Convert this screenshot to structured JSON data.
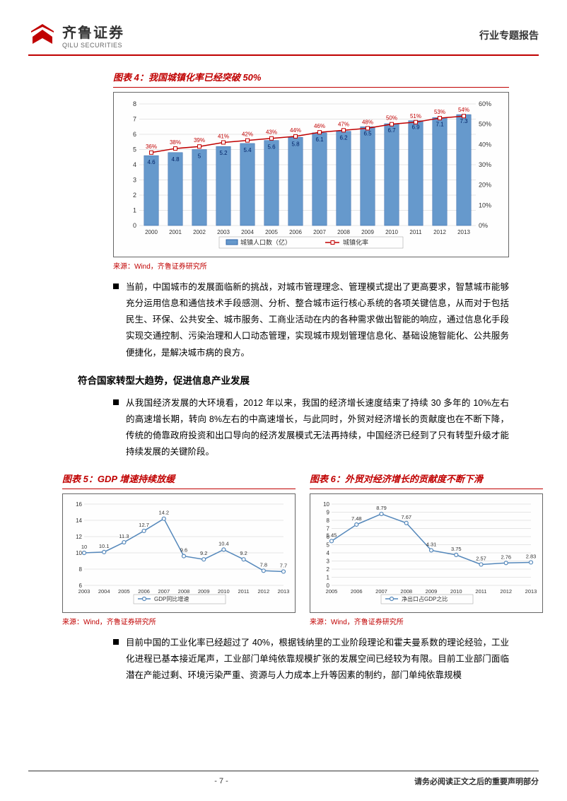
{
  "header": {
    "logo_cn": "齐鲁证券",
    "logo_en": "QILU SECURITIES",
    "report_type": "行业专题报告"
  },
  "chart4": {
    "title_prefix": "图表 4：",
    "title_text": "我国城镇化率已经突破 50%",
    "type": "bar_line_combo",
    "x_labels": [
      "2000",
      "2001",
      "2002",
      "2003",
      "2004",
      "2005",
      "2006",
      "2007",
      "2008",
      "2009",
      "2010",
      "2011",
      "2012",
      "2013"
    ],
    "bar_values": [
      4.6,
      4.8,
      5.0,
      5.2,
      5.4,
      5.6,
      5.8,
      6.1,
      6.2,
      6.5,
      6.7,
      6.9,
      7.1,
      7.3
    ],
    "line_values": [
      36,
      38,
      39,
      41,
      42,
      43,
      44,
      46,
      47,
      48,
      50,
      51,
      53,
      54
    ],
    "line_labels": [
      "36%",
      "38%",
      "39%",
      "41%",
      "42%",
      "43%",
      "44%",
      "46%",
      "47%",
      "48%",
      "50%",
      "51%",
      "53%",
      "54%"
    ],
    "left_axis": {
      "min": 0,
      "max": 8,
      "ticks": [
        0,
        1,
        2,
        3,
        4,
        5,
        6,
        7,
        8
      ]
    },
    "right_axis": {
      "min": 0,
      "max": 60,
      "ticks": [
        "0%",
        "10%",
        "20%",
        "30%",
        "40%",
        "50%",
        "60%"
      ]
    },
    "bar_color": "#6699cc",
    "bar_stroke": "#3366aa",
    "line_color": "#c00000",
    "grid_color": "#cccccc",
    "legend": [
      "城镇人口数（亿）",
      "城镇化率"
    ],
    "source": "来源：Wind，齐鲁证券研究所"
  },
  "para1": "当前，中国城市的发展面临新的挑战，对城市管理理念、管理模式提出了更高要求，智慧城市能够充分运用信息和通信技术手段感测、分析、整合城市运行核心系统的各项关键信息，从而对于包括民生、环保、公共安全、城市服务、工商业活动在内的各种需求做出智能的响应，通过信息化手段实现交通控制、污染治理和人口动态管理，实现城市规划管理信息化、基础设施智能化、公共服务便捷化，是解决城市病的良方。",
  "section_heading": "符合国家转型大趋势，促进信息产业发展",
  "para2": "从我国经济发展的大环境看，2012 年以来，我国的经济增长速度结束了持续 30 多年的 10%左右的高速增长期，转向 8%左右的中高速增长，与此同时，外贸对经济增长的贡献度也在不断下降，传统的倚靠政府投资和出口导向的经济发展模式无法再持续，中国经济已经到了只有转型升级才能持续发展的关键阶段。",
  "chart5": {
    "title_prefix": "图表 5：",
    "title_text": "GDP 增速持续放缓",
    "type": "line",
    "x_labels": [
      "2003",
      "2004",
      "2005",
      "2006",
      "2007",
      "2008",
      "2009",
      "2010",
      "2011",
      "2012",
      "2013"
    ],
    "values": [
      10,
      10.1,
      11.3,
      12.7,
      14.2,
      9.6,
      9.2,
      10.4,
      9.2,
      7.8,
      7.7
    ],
    "y_axis": {
      "min": 6,
      "max": 16,
      "ticks": [
        6,
        8,
        10,
        12,
        14,
        16
      ]
    },
    "line_color": "#5588bb",
    "marker_color": "#5588bb",
    "grid_color": "#cccccc",
    "legend": "GDP同比增速",
    "source": "来源：Wind，齐鲁证券研究所"
  },
  "chart6": {
    "title_prefix": "图表 6：",
    "title_text": "外贸对经济增长的贡献度不断下滑",
    "type": "line",
    "x_labels": [
      "2005",
      "2006",
      "2007",
      "2008",
      "2009",
      "2010",
      "2011",
      "2012",
      "2013"
    ],
    "values": [
      5.45,
      7.48,
      8.79,
      7.67,
      4.31,
      3.75,
      2.57,
      2.76,
      2.83
    ],
    "y_axis": {
      "min": 0,
      "max": 10,
      "ticks": [
        0,
        1,
        2,
        3,
        4,
        5,
        6,
        7,
        8,
        9,
        10
      ]
    },
    "line_color": "#5588bb",
    "marker_color": "#5588bb",
    "grid_color": "#cccccc",
    "legend": "净出口占GDP之比",
    "source": "来源：Wind，齐鲁证券研究所"
  },
  "para3": "目前中国的工业化率已经超过了 40%，根据钱纳里的工业阶段理论和霍夫曼系数的理论经验，工业化进程已基本接近尾声，工业部门单纯依靠规模扩张的发展空间已经较为有限。目前工业部门面临潜在产能过剩、环境污染严重、资源与人力成本上升等因素的制约，部门单纯依靠规模",
  "footer": {
    "page_num": "- 7 -",
    "disclaimer": "请务必阅读正文之后的重要声明部分"
  }
}
